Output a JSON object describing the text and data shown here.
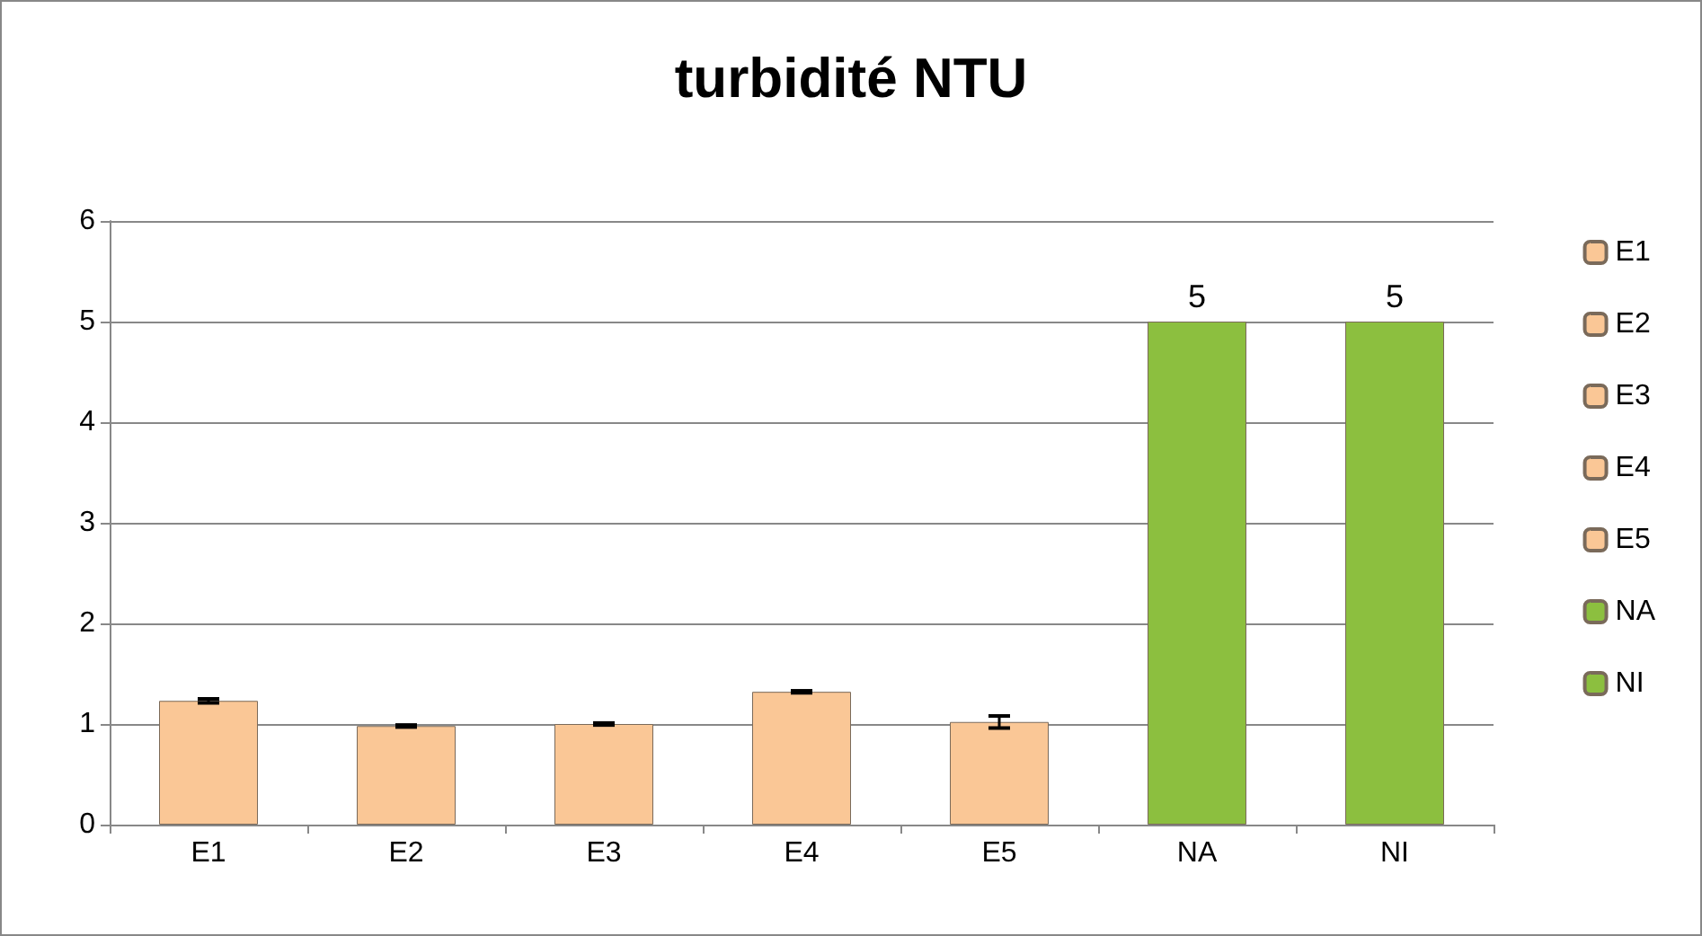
{
  "chart_data": {
    "type": "bar",
    "title": "turbidité NTU",
    "categories": [
      "E1",
      "E2",
      "E3",
      "E4",
      "E5",
      "NA",
      "NI"
    ],
    "series": [
      {
        "name": "E1",
        "color": "#fac796",
        "values": [
          1.23,
          null,
          null,
          null,
          null,
          null,
          null
        ],
        "errors": [
          0.02,
          null,
          null,
          null,
          null,
          null,
          null
        ]
      },
      {
        "name": "E2",
        "color": "#fac796",
        "values": [
          null,
          0.98,
          null,
          null,
          null,
          null,
          null
        ],
        "errors": [
          null,
          0.01,
          null,
          null,
          null,
          null,
          null
        ]
      },
      {
        "name": "E3",
        "color": "#fac796",
        "values": [
          null,
          null,
          1.0,
          null,
          null,
          null,
          null
        ],
        "errors": [
          null,
          null,
          0.01,
          null,
          null,
          null,
          null
        ]
      },
      {
        "name": "E4",
        "color": "#fac796",
        "values": [
          null,
          null,
          null,
          1.32,
          null,
          null,
          null
        ],
        "errors": [
          null,
          null,
          null,
          0.01,
          null,
          null,
          null
        ]
      },
      {
        "name": "E5",
        "color": "#fac796",
        "values": [
          null,
          null,
          null,
          null,
          1.02,
          null,
          null
        ],
        "errors": [
          null,
          null,
          null,
          null,
          0.06,
          null,
          null
        ]
      },
      {
        "name": "NA",
        "color": "#8cbf3f",
        "values": [
          null,
          null,
          null,
          null,
          null,
          5,
          null
        ],
        "value_labels": [
          null,
          null,
          null,
          null,
          null,
          "5",
          null
        ]
      },
      {
        "name": "NI",
        "color": "#8cbf3f",
        "values": [
          null,
          null,
          null,
          null,
          null,
          null,
          5
        ],
        "value_labels": [
          null,
          null,
          null,
          null,
          null,
          null,
          "5"
        ]
      }
    ],
    "ylim": [
      0,
      6
    ],
    "yticks": [
      0,
      1,
      2,
      3,
      4,
      5,
      6
    ],
    "grid": "y",
    "legend": "right"
  }
}
